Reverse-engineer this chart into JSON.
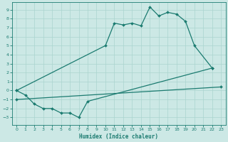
{
  "xlabel": "Humidex (Indice chaleur)",
  "xlim": [
    -0.5,
    23.5
  ],
  "ylim": [
    -3.8,
    9.8
  ],
  "xticks": [
    0,
    1,
    2,
    3,
    4,
    5,
    6,
    7,
    8,
    9,
    10,
    11,
    12,
    13,
    14,
    15,
    16,
    17,
    18,
    19,
    20,
    21,
    22,
    23
  ],
  "yticks": [
    -3,
    -2,
    -1,
    0,
    1,
    2,
    3,
    4,
    5,
    6,
    7,
    8,
    9
  ],
  "bg_color": "#cce8e5",
  "line_color": "#1b7b70",
  "grid_color": "#aad4cf",
  "series": [
    {
      "x": [
        0,
        10,
        11,
        12,
        13,
        14,
        15,
        16,
        17,
        18,
        19,
        20,
        22
      ],
      "y": [
        0,
        5,
        7.5,
        7.3,
        7.5,
        7.2,
        9.3,
        8.3,
        8.7,
        8.5,
        7.7,
        5.0,
        2.5
      ]
    },
    {
      "x": [
        0,
        1,
        2,
        3,
        4,
        5,
        6,
        7,
        8,
        22
      ],
      "y": [
        0,
        -0.5,
        -1.5,
        -2.0,
        -2.0,
        -2.5,
        -2.5,
        -3.0,
        -1.2,
        2.5
      ]
    },
    {
      "x": [
        0,
        23
      ],
      "y": [
        -1.0,
        0.4
      ]
    }
  ]
}
